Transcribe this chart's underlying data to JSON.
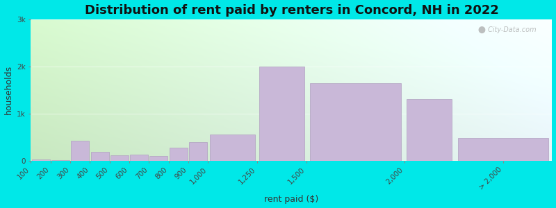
{
  "title": "Distribution of rent paid by renters in Concord, NH in 2022",
  "xlabel": "rent paid ($)",
  "ylabel": "households",
  "bar_color": "#c9b8d8",
  "bar_edge_color": "#b0a0c0",
  "background_outer": "#00e8e8",
  "background_inner_left": "#c8e8c0",
  "background_inner_right": "#d8f0f8",
  "watermark": "City-Data.com",
  "categories": [
    "100",
    "200",
    "300",
    "400",
    "500",
    "600",
    "700",
    "800",
    "900",
    "1,000",
    "1,250",
    "1,500",
    "2,000",
    "> 2,000"
  ],
  "left_edges": [
    100,
    200,
    300,
    400,
    500,
    600,
    700,
    800,
    900,
    1000,
    1250,
    1500,
    2000,
    2250
  ],
  "bar_widths": [
    100,
    100,
    100,
    100,
    100,
    100,
    100,
    100,
    100,
    250,
    250,
    500,
    250,
    500
  ],
  "values": [
    30,
    10,
    430,
    190,
    110,
    130,
    100,
    270,
    400,
    560,
    2000,
    1650,
    1300,
    490
  ],
  "ylim": [
    0,
    3000
  ],
  "yticks": [
    0,
    1000,
    2000,
    3000
  ],
  "ytick_labels": [
    "0",
    "1k",
    "2k",
    "3k"
  ],
  "xlim": [
    100,
    2750
  ],
  "xtick_positions": [
    100,
    200,
    300,
    400,
    500,
    600,
    700,
    800,
    900,
    1000,
    1250,
    1500,
    2000,
    2500
  ],
  "xtick_labels": [
    "100",
    "200",
    "300",
    "400",
    "500",
    "600",
    "700",
    "800",
    "900",
    "1,000",
    "1,250",
    "1,500",
    "2,000",
    "> 2,000"
  ],
  "title_fontsize": 13,
  "axis_label_fontsize": 9,
  "tick_fontsize": 7.5
}
